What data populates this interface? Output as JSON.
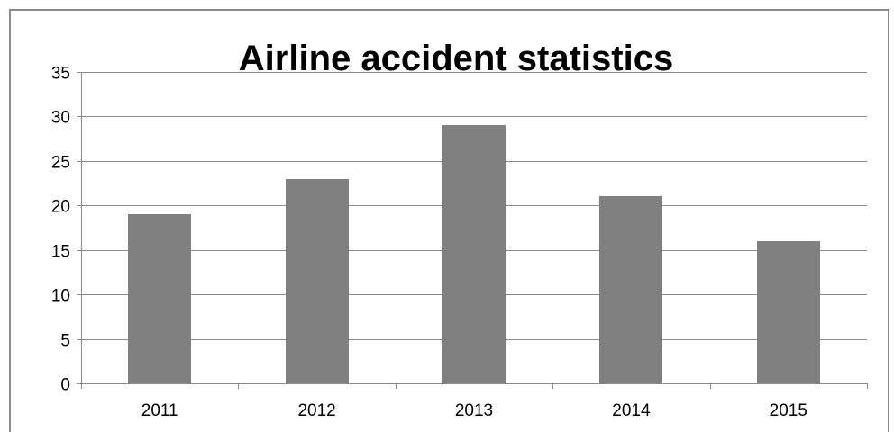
{
  "chart_data": {
    "type": "bar",
    "title": "Airline accident statistics",
    "categories": [
      "2011",
      "2012",
      "2013",
      "2014",
      "2015"
    ],
    "values": [
      19,
      23,
      29,
      21,
      16
    ],
    "ylim": [
      0,
      35
    ],
    "yticks": [
      0,
      5,
      10,
      15,
      20,
      25,
      30,
      35
    ],
    "grid": true,
    "legend": "none",
    "bar_color": "#808080",
    "grid_color": "#8a8a8a"
  }
}
